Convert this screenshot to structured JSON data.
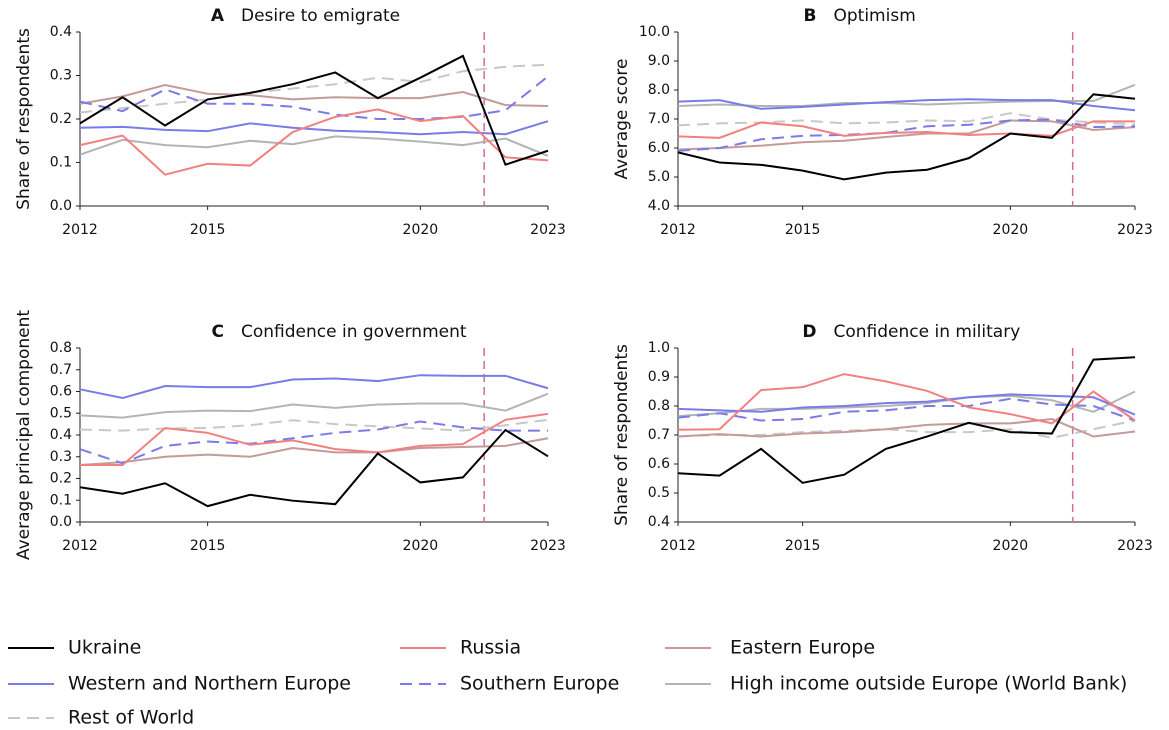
{
  "chart_data": [
    {
      "type": "line",
      "panel": "A",
      "title": "Desire to emigrate",
      "y_label": "Share of respondents",
      "x": [
        2012,
        2013,
        2014,
        2015,
        2016,
        2017,
        2018,
        2019,
        2020,
        2021,
        2022,
        2023
      ],
      "xlim": [
        2012,
        2023
      ],
      "xticks": [
        2012,
        2015,
        2020,
        2023
      ],
      "ylim": [
        0,
        0.4
      ],
      "yticks": [
        {
          "value": 0,
          "label": "0.0"
        },
        0.1,
        0.2,
        0.3,
        0.4
      ],
      "vline": 2021.5,
      "vline_color": "#d46a9f",
      "series": [
        {
          "name": "Ukraine",
          "color": "#000000",
          "dash": false,
          "values": [
            0.19,
            0.25,
            0.185,
            0.245,
            0.26,
            0.28,
            0.307,
            0.248,
            0.295,
            0.345,
            0.095,
            0.127
          ]
        },
        {
          "name": "Russia",
          "color": "#f28080",
          "dash": false,
          "values": [
            0.14,
            0.162,
            0.072,
            0.097,
            0.093,
            0.17,
            0.205,
            0.222,
            0.195,
            0.207,
            0.112,
            0.105
          ]
        },
        {
          "name": "Eastern Europe",
          "color": "#c49a9a",
          "dash": false,
          "values": [
            0.235,
            0.252,
            0.278,
            0.258,
            0.255,
            0.245,
            0.25,
            0.248,
            0.248,
            0.262,
            0.232,
            0.23
          ]
        },
        {
          "name": "Western and Northern Europe",
          "color": "#7b7be8",
          "dash": false,
          "values": [
            0.18,
            0.182,
            0.175,
            0.172,
            0.19,
            0.18,
            0.173,
            0.17,
            0.165,
            0.17,
            0.165,
            0.195
          ]
        },
        {
          "name": "Southern Europe",
          "color": "#7b7be8",
          "dash": true,
          "values": [
            0.24,
            0.218,
            0.268,
            0.235,
            0.235,
            0.228,
            0.21,
            0.2,
            0.2,
            0.205,
            0.22,
            0.298
          ]
        },
        {
          "name": "High income outside Europe (World Bank)",
          "color": "#b4b4b4",
          "dash": false,
          "values": [
            0.118,
            0.152,
            0.14,
            0.135,
            0.15,
            0.142,
            0.16,
            0.155,
            0.148,
            0.14,
            0.155,
            0.115
          ]
        },
        {
          "name": "Rest of World",
          "color": "#c8c8c8",
          "dash": true,
          "values": [
            0.215,
            0.225,
            0.235,
            0.245,
            0.26,
            0.27,
            0.28,
            0.295,
            0.285,
            0.31,
            0.32,
            0.325
          ]
        }
      ]
    },
    {
      "type": "line",
      "panel": "B",
      "title": "Optimism",
      "y_label": "Average score",
      "x": [
        2012,
        2013,
        2014,
        2015,
        2016,
        2017,
        2018,
        2019,
        2020,
        2021,
        2022,
        2023
      ],
      "xlim": [
        2012,
        2023
      ],
      "xticks": [
        2012,
        2015,
        2020,
        2023
      ],
      "ylim": [
        4,
        10
      ],
      "yticks": [
        {
          "value": 4,
          "label": "4.0"
        },
        {
          "value": 5,
          "label": "5.0"
        },
        {
          "value": 6,
          "label": "6.0"
        },
        {
          "value": 7,
          "label": "7.0"
        },
        {
          "value": 8,
          "label": "8.0"
        },
        {
          "value": 9,
          "label": "9.0"
        },
        {
          "value": 10,
          "label": "10.0"
        }
      ],
      "vline": 2021.5,
      "vline_color": "#d46a9f",
      "series": [
        {
          "name": "Ukraine",
          "color": "#000000",
          "dash": false,
          "values": [
            5.85,
            5.5,
            5.42,
            5.22,
            4.92,
            5.15,
            5.25,
            5.65,
            6.5,
            6.35,
            7.85,
            7.7
          ]
        },
        {
          "name": "Russia",
          "color": "#f28080",
          "dash": false,
          "values": [
            6.4,
            6.35,
            6.88,
            6.75,
            6.42,
            6.52,
            6.55,
            6.45,
            6.5,
            6.42,
            6.92,
            6.92
          ]
        },
        {
          "name": "Eastern Europe",
          "color": "#c49a9a",
          "dash": false,
          "values": [
            5.95,
            6.0,
            6.08,
            6.2,
            6.25,
            6.38,
            6.5,
            6.5,
            6.95,
            6.92,
            6.62,
            6.72
          ]
        },
        {
          "name": "Western and Northern Europe",
          "color": "#7b7be8",
          "dash": false,
          "values": [
            7.6,
            7.65,
            7.35,
            7.42,
            7.5,
            7.58,
            7.65,
            7.68,
            7.65,
            7.65,
            7.45,
            7.3
          ]
        },
        {
          "name": "Southern Europe",
          "color": "#7b7be8",
          "dash": true,
          "values": [
            5.9,
            6.0,
            6.3,
            6.42,
            6.45,
            6.52,
            6.75,
            6.8,
            6.95,
            6.98,
            6.72,
            6.75
          ]
        },
        {
          "name": "High income outside Europe (World Bank)",
          "color": "#b4b4b4",
          "dash": false,
          "values": [
            7.45,
            7.5,
            7.45,
            7.45,
            7.55,
            7.55,
            7.5,
            7.55,
            7.6,
            7.62,
            7.62,
            8.18
          ]
        },
        {
          "name": "Rest of World",
          "color": "#c8c8c8",
          "dash": true,
          "values": [
            6.78,
            6.85,
            6.88,
            6.95,
            6.85,
            6.88,
            6.95,
            6.92,
            7.2,
            6.98,
            6.88,
            6.82
          ]
        }
      ]
    },
    {
      "type": "line",
      "panel": "C",
      "title": "Confidence in government",
      "y_label": "Average principal component",
      "x": [
        2012,
        2013,
        2014,
        2015,
        2016,
        2017,
        2018,
        2019,
        2020,
        2021,
        2022,
        2023
      ],
      "xlim": [
        2012,
        2023
      ],
      "xticks": [
        2012,
        2015,
        2020,
        2023
      ],
      "ylim": [
        0,
        0.8
      ],
      "yticks": [
        {
          "value": 0,
          "label": "0.0"
        },
        0.1,
        0.2,
        0.3,
        0.4,
        0.5,
        0.6,
        0.7,
        0.8
      ],
      "vline": 2021.5,
      "vline_color": "#d46a9f",
      "series": [
        {
          "name": "Ukraine",
          "color": "#000000",
          "dash": false,
          "values": [
            0.16,
            0.13,
            0.178,
            0.073,
            0.125,
            0.098,
            0.082,
            0.315,
            0.182,
            0.205,
            0.423,
            0.302
          ]
        },
        {
          "name": "Russia",
          "color": "#f28080",
          "dash": false,
          "values": [
            0.262,
            0.262,
            0.432,
            0.41,
            0.355,
            0.375,
            0.335,
            0.32,
            0.35,
            0.358,
            0.47,
            0.497
          ]
        },
        {
          "name": "Eastern Europe",
          "color": "#c49a9a",
          "dash": false,
          "values": [
            0.262,
            0.275,
            0.3,
            0.31,
            0.3,
            0.34,
            0.32,
            0.32,
            0.34,
            0.345,
            0.35,
            0.385
          ]
        },
        {
          "name": "Western and Northern Europe",
          "color": "#7b7be8",
          "dash": false,
          "values": [
            0.61,
            0.57,
            0.625,
            0.62,
            0.62,
            0.655,
            0.66,
            0.648,
            0.675,
            0.672,
            0.672,
            0.615
          ]
        },
        {
          "name": "Southern Europe",
          "color": "#7b7be8",
          "dash": true,
          "values": [
            0.335,
            0.27,
            0.35,
            0.37,
            0.36,
            0.385,
            0.41,
            0.425,
            0.462,
            0.435,
            0.42,
            0.42
          ]
        },
        {
          "name": "High income outside Europe (World Bank)",
          "color": "#b4b4b4",
          "dash": false,
          "values": [
            0.49,
            0.48,
            0.505,
            0.512,
            0.51,
            0.54,
            0.525,
            0.54,
            0.545,
            0.545,
            0.512,
            0.59
          ]
        },
        {
          "name": "Rest of World",
          "color": "#c8c8c8",
          "dash": true,
          "values": [
            0.425,
            0.42,
            0.43,
            0.432,
            0.445,
            0.468,
            0.45,
            0.44,
            0.43,
            0.42,
            0.445,
            0.47
          ]
        }
      ]
    },
    {
      "type": "line",
      "panel": "D",
      "title": "Confidence in military",
      "y_label": "Share of respondents",
      "x": [
        2012,
        2013,
        2014,
        2015,
        2016,
        2017,
        2018,
        2019,
        2020,
        2021,
        2022,
        2023
      ],
      "xlim": [
        2012,
        2023
      ],
      "xticks": [
        2012,
        2015,
        2020,
        2023
      ],
      "ylim": [
        0.4,
        1.0
      ],
      "yticks": [
        0.4,
        0.5,
        0.6,
        0.7,
        0.8,
        0.9,
        {
          "value": 1,
          "label": "1.0"
        }
      ],
      "vline": 2021.5,
      "vline_color": "#d46a9f",
      "series": [
        {
          "name": "Ukraine",
          "color": "#000000",
          "dash": false,
          "values": [
            0.568,
            0.56,
            0.652,
            0.535,
            0.563,
            0.652,
            0.695,
            0.742,
            0.71,
            0.705,
            0.96,
            0.968
          ]
        },
        {
          "name": "Russia",
          "color": "#f28080",
          "dash": false,
          "values": [
            0.718,
            0.72,
            0.855,
            0.865,
            0.91,
            0.885,
            0.852,
            0.795,
            0.772,
            0.74,
            0.85,
            0.75
          ]
        },
        {
          "name": "Eastern Europe",
          "color": "#c49a9a",
          "dash": false,
          "values": [
            0.695,
            0.703,
            0.695,
            0.705,
            0.71,
            0.72,
            0.735,
            0.74,
            0.74,
            0.755,
            0.695,
            0.712
          ]
        },
        {
          "name": "Western and Northern Europe",
          "color": "#7b7be8",
          "dash": false,
          "values": [
            0.79,
            0.785,
            0.78,
            0.795,
            0.8,
            0.81,
            0.815,
            0.83,
            0.84,
            0.835,
            0.83,
            0.77
          ]
        },
        {
          "name": "Southern Europe",
          "color": "#7b7be8",
          "dash": true,
          "values": [
            0.76,
            0.775,
            0.75,
            0.755,
            0.78,
            0.785,
            0.8,
            0.8,
            0.825,
            0.805,
            0.8,
            0.75
          ]
        },
        {
          "name": "High income outside Europe (World Bank)",
          "color": "#b4b4b4",
          "dash": false,
          "values": [
            0.765,
            0.775,
            0.79,
            0.79,
            0.795,
            0.8,
            0.81,
            0.83,
            0.835,
            0.82,
            0.78,
            0.85
          ]
        },
        {
          "name": "Rest of World",
          "color": "#c8c8c8",
          "dash": true,
          "values": [
            0.695,
            0.7,
            0.7,
            0.71,
            0.715,
            0.72,
            0.71,
            0.71,
            0.72,
            0.69,
            0.72,
            0.75
          ]
        }
      ]
    }
  ]
}
